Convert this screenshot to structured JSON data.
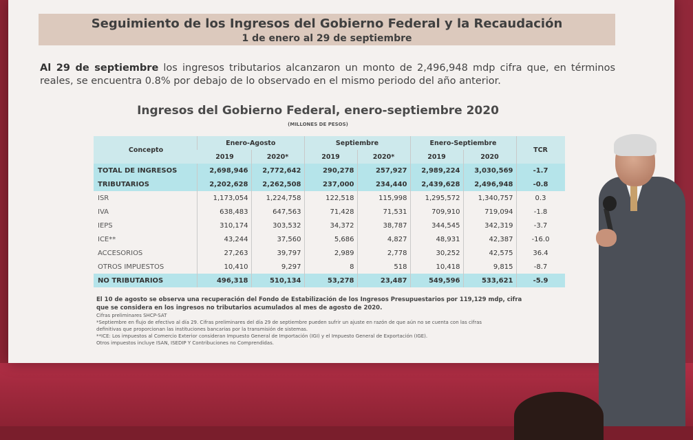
{
  "banner": {
    "title": "Seguimiento de los Ingresos del Gobierno Federal y la Recaudación",
    "subtitle": "1 de enero al 29 de septiembre"
  },
  "intro": {
    "bold": "Al 29 de septiembre",
    "text": " los ingresos tributarios alcanzaron un monto de 2,496,948 mdp cifra que, en términos reales, se encuentra 0.8% por debajo de lo observado en el mismo periodo del año anterior."
  },
  "table_title": "Ingresos del Gobierno Federal, enero-septiembre 2020",
  "table_subtitle": "(MILLONES DE PESOS)",
  "table": {
    "header": {
      "concepto": "Concepto",
      "g1": "Enero-Agosto",
      "g2": "Septiembre",
      "g3": "Enero-Septiembre",
      "tcr": "TCR",
      "y1": "2019",
      "y2": "2020*",
      "y3": "2019",
      "y4": "2020*",
      "y5": "2019",
      "y6": "2020"
    },
    "rows": [
      {
        "label": "TOTAL DE INGRESOS",
        "v1": "2,698,946",
        "v2": "2,772,642",
        "v3": "290,278",
        "v4": "257,927",
        "v5": "2,989,224",
        "v6": "3,030,569",
        "tcr": "-1.7"
      },
      {
        "label": "TRIBUTARIOS",
        "v1": "2,202,628",
        "v2": "2,262,508",
        "v3": "237,000",
        "v4": "234,440",
        "v5": "2,439,628",
        "v6": "2,496,948",
        "tcr": "-0.8"
      },
      {
        "label": "ISR",
        "v1": "1,173,054",
        "v2": "1,224,758",
        "v3": "122,518",
        "v4": "115,998",
        "v5": "1,295,572",
        "v6": "1,340,757",
        "tcr": "0.3"
      },
      {
        "label": "IVA",
        "v1": "638,483",
        "v2": "647,563",
        "v3": "71,428",
        "v4": "71,531",
        "v5": "709,910",
        "v6": "719,094",
        "tcr": "-1.8"
      },
      {
        "label": "IEPS",
        "v1": "310,174",
        "v2": "303,532",
        "v3": "34,372",
        "v4": "38,787",
        "v5": "344,545",
        "v6": "342,319",
        "tcr": "-3.7"
      },
      {
        "label": "ICE**",
        "v1": "43,244",
        "v2": "37,560",
        "v3": "5,686",
        "v4": "4,827",
        "v5": "48,931",
        "v6": "42,387",
        "tcr": "-16.0"
      },
      {
        "label": "ACCESORIOS",
        "v1": "27,263",
        "v2": "39,797",
        "v3": "2,989",
        "v4": "2,778",
        "v5": "30,252",
        "v6": "42,575",
        "tcr": "36.4"
      },
      {
        "label": "OTROS IMPUESTOS",
        "v1": "10,410",
        "v2": "9,297",
        "v3": "8",
        "v4": "518",
        "v5": "10,418",
        "v6": "9,815",
        "tcr": "-8.7"
      },
      {
        "label": "NO TRIBUTARIOS",
        "v1": "496,318",
        "v2": "510,134",
        "v3": "53,278",
        "v4": "23,487",
        "v5": "549,596",
        "v6": "533,621",
        "tcr": "-5.9"
      }
    ]
  },
  "notes": {
    "bold1": "El 10 de agosto se observa una recuperación del Fondo de Estabilización de los Ingresos Presupuestarios por 119,129 mdp, cifra",
    "bold2": "que se considera en los ingresos no tributarios acumulados al mes de agosto de 2020.",
    "n1": "Cifras preliminares SHCP-SAT",
    "n2": "*Septiembre en flujo de efectivo al día 29. Cifras preliminares del día 29 de septiembre pueden sufrir un ajuste en razón de que aún no se cuenta con las cifras",
    "n3": "definitivas que proporcionan las instituciones bancarias por la transmisión de sistemas.",
    "n4": "**ICE: Los impuestos al Comercio Exterior consideran Impuesto General de Importación (IGI) y el Impuesto General de Exportación (IGE).",
    "n5": "Otros impuestos incluye ISAN, ISEDIP Y Contribuciones no Comprendidas."
  },
  "colors": {
    "banner": "#dcc9bd",
    "header_cell": "#cde9ec",
    "highlight_row": "#b5e4ea",
    "backdrop": "#a22c3c"
  }
}
